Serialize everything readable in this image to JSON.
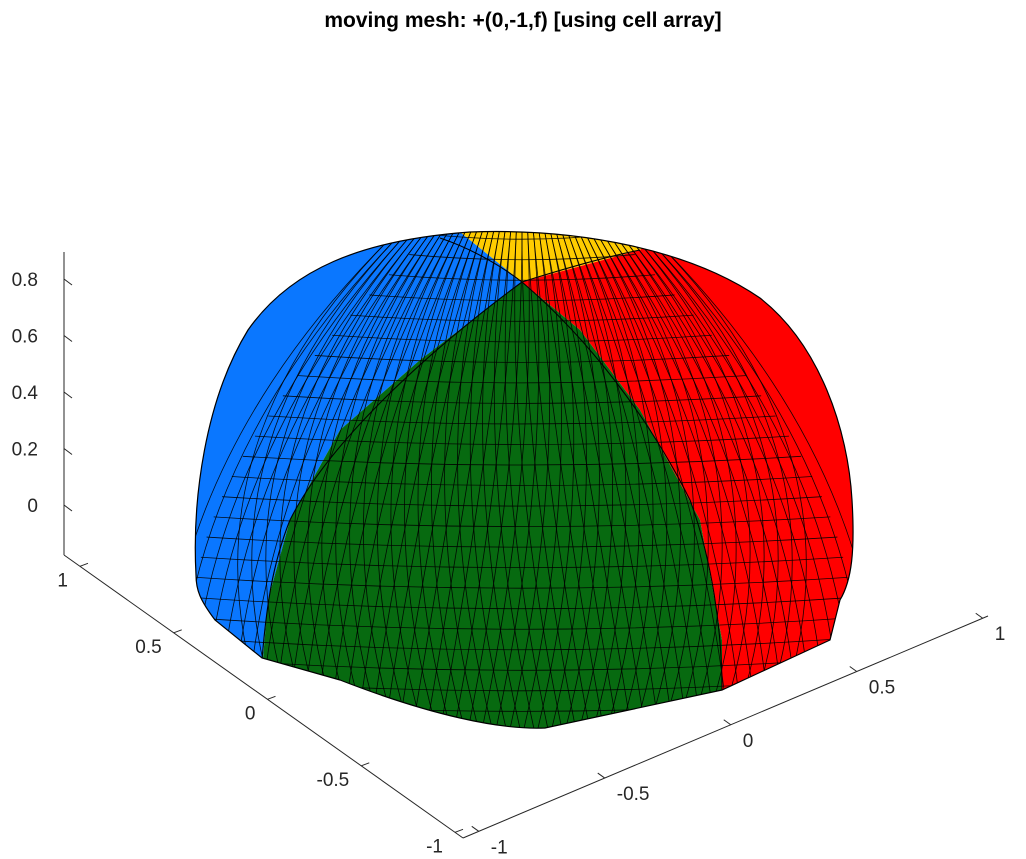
{
  "chart_data": {
    "type": "surface-mesh",
    "title": "moving mesh: +(0,-1,f) [using cell array]",
    "xlabel": "",
    "ylabel": "",
    "zlabel": "",
    "z_axis": {
      "range": [
        -0.1,
        0.9
      ],
      "ticks": [
        "0",
        "0.2",
        "0.4",
        "0.6",
        "0.8"
      ]
    },
    "y_axis_left": {
      "range": [
        -1,
        1
      ],
      "ticks": [
        "1",
        "0.5",
        "0",
        "-0.5",
        "-1"
      ]
    },
    "x_axis_right": {
      "range": [
        -1,
        1
      ],
      "ticks": [
        "-1",
        "-0.5",
        "0",
        "0.5",
        "1"
      ]
    },
    "grid": false,
    "surface": {
      "shape": "hemisphere dome",
      "patches": [
        {
          "name": "blue",
          "color": "#0a77ff"
        },
        {
          "name": "yellow",
          "color": "#ffcc00"
        },
        {
          "name": "red",
          "color": "#ff0000"
        },
        {
          "name": "green",
          "color": "#076a10"
        }
      ],
      "edge_color": "#000000",
      "mesh": "triangular"
    }
  }
}
